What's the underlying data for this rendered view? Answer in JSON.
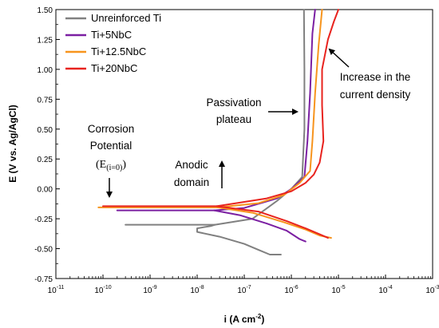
{
  "chart_data": {
    "type": "line",
    "xlabel": "i (A cm",
    "xlabel_sup": "-2",
    "xlabel_end": ")",
    "ylabel": "E (V vs. Ag/AgCl)",
    "x_scale": "log",
    "xlim": [
      1e-11,
      0.001
    ],
    "ylim": [
      -0.75,
      1.5
    ],
    "x_ticks": [
      {
        "base": "10",
        "exp": "-11"
      },
      {
        "base": "10",
        "exp": "-10"
      },
      {
        "base": "10",
        "exp": "-9"
      },
      {
        "base": "10",
        "exp": "-8"
      },
      {
        "base": "10",
        "exp": "-7"
      },
      {
        "base": "10",
        "exp": "-6"
      },
      {
        "base": "10",
        "exp": "-5"
      },
      {
        "base": "10",
        "exp": "-4"
      },
      {
        "base": "10",
        "exp": "-3"
      }
    ],
    "y_ticks": [
      "-0.75",
      "-0.50",
      "-0.25",
      "0.00",
      "0.25",
      "0.50",
      "0.75",
      "1.00",
      "1.25",
      "1.50"
    ],
    "grid": false,
    "legend_position": "top-left",
    "series": [
      {
        "name": "Unreinforced Ti",
        "color": "#808080",
        "anodic": [
          [
            2.4e-08,
            -0.3
          ],
          [
            1.5e-07,
            -0.25
          ],
          [
            5e-07,
            -0.1
          ],
          [
            1e-06,
            0.0
          ],
          [
            1.7e-06,
            0.1
          ],
          [
            1.9e-06,
            0.5
          ],
          [
            1.9e-06,
            1.0
          ],
          [
            1.85e-06,
            1.5
          ]
        ],
        "cathodic": [
          [
            2.4e-08,
            -0.3
          ],
          [
            2e-08,
            -0.31
          ],
          [
            1e-08,
            -0.33
          ],
          [
            1e-08,
            -0.36
          ],
          [
            3e-08,
            -0.4
          ],
          [
            1e-07,
            -0.46
          ],
          [
            2e-07,
            -0.51
          ],
          [
            3.5e-07,
            -0.55
          ],
          [
            6e-07,
            -0.55
          ]
        ],
        "anodic_tail": [
          [
            2.4e-08,
            -0.3
          ],
          [
            5e-09,
            -0.3
          ],
          [
            3e-10,
            -0.3
          ]
        ]
      },
      {
        "name": "Ti+5NbC",
        "color": "#7B1FA2",
        "anodic": [
          [
            2.3e-08,
            -0.18
          ],
          [
            1e-07,
            -0.16
          ],
          [
            5e-07,
            -0.08
          ],
          [
            1e-06,
            0.0
          ],
          [
            1.9e-06,
            0.1
          ],
          [
            2.2e-06,
            0.4
          ],
          [
            2.5e-06,
            0.8
          ],
          [
            2.8e-06,
            1.3
          ],
          [
            3.2e-06,
            1.5
          ]
        ],
        "cathodic": [
          [
            2.3e-08,
            -0.18
          ],
          [
            8e-08,
            -0.22
          ],
          [
            3e-07,
            -0.29
          ],
          [
            8e-07,
            -0.35
          ],
          [
            1.5e-06,
            -0.42
          ],
          [
            2e-06,
            -0.44
          ]
        ],
        "anodic_tail": [
          [
            2.3e-08,
            -0.18
          ],
          [
            5e-09,
            -0.18
          ],
          [
            2e-10,
            -0.18
          ]
        ]
      },
      {
        "name": "Ti+12.5NbC",
        "color": "#F7941D",
        "anodic": [
          [
            2.7e-08,
            -0.155
          ],
          [
            2e-07,
            -0.12
          ],
          [
            7e-07,
            -0.05
          ],
          [
            1.5e-06,
            0.05
          ],
          [
            2.5e-06,
            0.15
          ],
          [
            2.8e-06,
            0.4
          ],
          [
            3.2e-06,
            0.8
          ],
          [
            3.8e-06,
            1.2
          ],
          [
            4.5e-06,
            1.5
          ]
        ],
        "cathodic": [
          [
            2.7e-08,
            -0.155
          ],
          [
            1.5e-07,
            -0.2
          ],
          [
            7e-07,
            -0.28
          ],
          [
            2e-06,
            -0.34
          ],
          [
            4e-06,
            -0.39
          ],
          [
            7e-06,
            -0.41
          ]
        ],
        "anodic_tail": [
          [
            2.7e-08,
            -0.155
          ],
          [
            5e-09,
            -0.155
          ],
          [
            8e-11,
            -0.155
          ]
        ]
      },
      {
        "name": "Ti+20NbC",
        "color": "#E8231E",
        "anodic": [
          [
            2.6e-08,
            -0.145
          ],
          [
            3e-07,
            -0.08
          ],
          [
            1e-06,
            -0.02
          ],
          [
            2e-06,
            0.05
          ],
          [
            3e-06,
            0.12
          ],
          [
            4e-06,
            0.22
          ],
          [
            4.8e-06,
            0.4
          ],
          [
            4.5e-06,
            0.7
          ],
          [
            4.5e-06,
            1.0
          ],
          [
            6e-06,
            1.25
          ],
          [
            8e-06,
            1.4
          ],
          [
            1e-05,
            1.5
          ]
        ],
        "cathodic": [
          [
            2.6e-08,
            -0.145
          ],
          [
            2e-07,
            -0.19
          ],
          [
            8e-07,
            -0.27
          ],
          [
            2e-06,
            -0.33
          ],
          [
            4e-06,
            -0.38
          ],
          [
            6e-06,
            -0.41
          ]
        ],
        "anodic_tail": [
          [
            2.6e-08,
            -0.145
          ],
          [
            5e-09,
            -0.145
          ],
          [
            1e-10,
            -0.145
          ]
        ]
      }
    ],
    "annotations": {
      "corrosion_line1": "Corrosion",
      "corrosion_line2": "Potential",
      "e_label": "E",
      "e_sub": "(i=0)",
      "anodic_line1": "Anodic",
      "anodic_line2": "domain",
      "passivation_line1": "Passivation",
      "passivation_line2": "plateau",
      "increase_line1": "Increase in the",
      "increase_line2": "current density"
    }
  }
}
